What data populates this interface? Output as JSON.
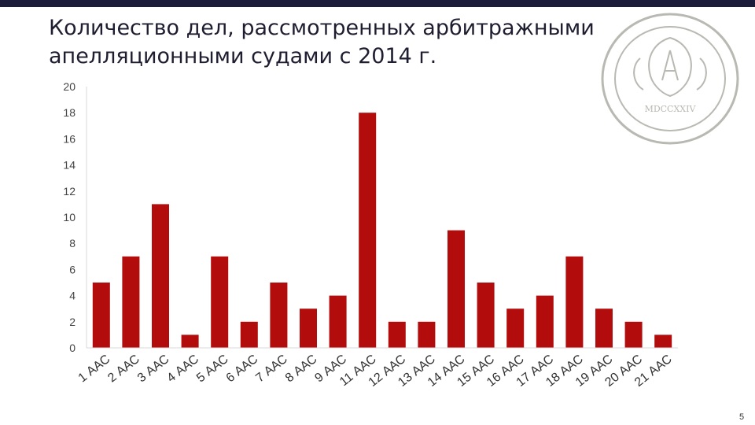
{
  "slide": {
    "title_line1": "Количество дел, рассмотренных арбитражными",
    "title_line2": "апелляционными судами с 2014 г.",
    "page_number": "5",
    "seal_text": "МDCCXXIV",
    "colors": {
      "bar": "#b30c0c",
      "title": "#1e1e30",
      "topbar": "#1b1b3a",
      "seal": "#b9b9b3"
    }
  },
  "chart_data": {
    "type": "bar",
    "title": "",
    "xlabel": "",
    "ylabel": "",
    "ylim": [
      0,
      20
    ],
    "yticks": [
      0,
      2,
      4,
      6,
      8,
      10,
      12,
      14,
      16,
      18,
      20
    ],
    "categories": [
      "1 ААС",
      "2 ААС",
      "3 ААС",
      "4 ААС",
      "5 ААС",
      "6 ААС",
      "7 ААС",
      "8 ААС",
      "9 ААС",
      "11 ААС",
      "12 ААС",
      "13 ААС",
      "14 ААС",
      "15 ААС",
      "16 ААС",
      "17 ААС",
      "18 ААС",
      "19 ААС",
      "20 ААС",
      "21 ААС"
    ],
    "values": [
      5,
      7,
      11,
      1,
      7,
      2,
      5,
      3,
      4,
      18,
      2,
      2,
      9,
      5,
      3,
      4,
      7,
      3,
      2,
      1
    ],
    "grid": false,
    "bar_color": "#b30c0c"
  }
}
